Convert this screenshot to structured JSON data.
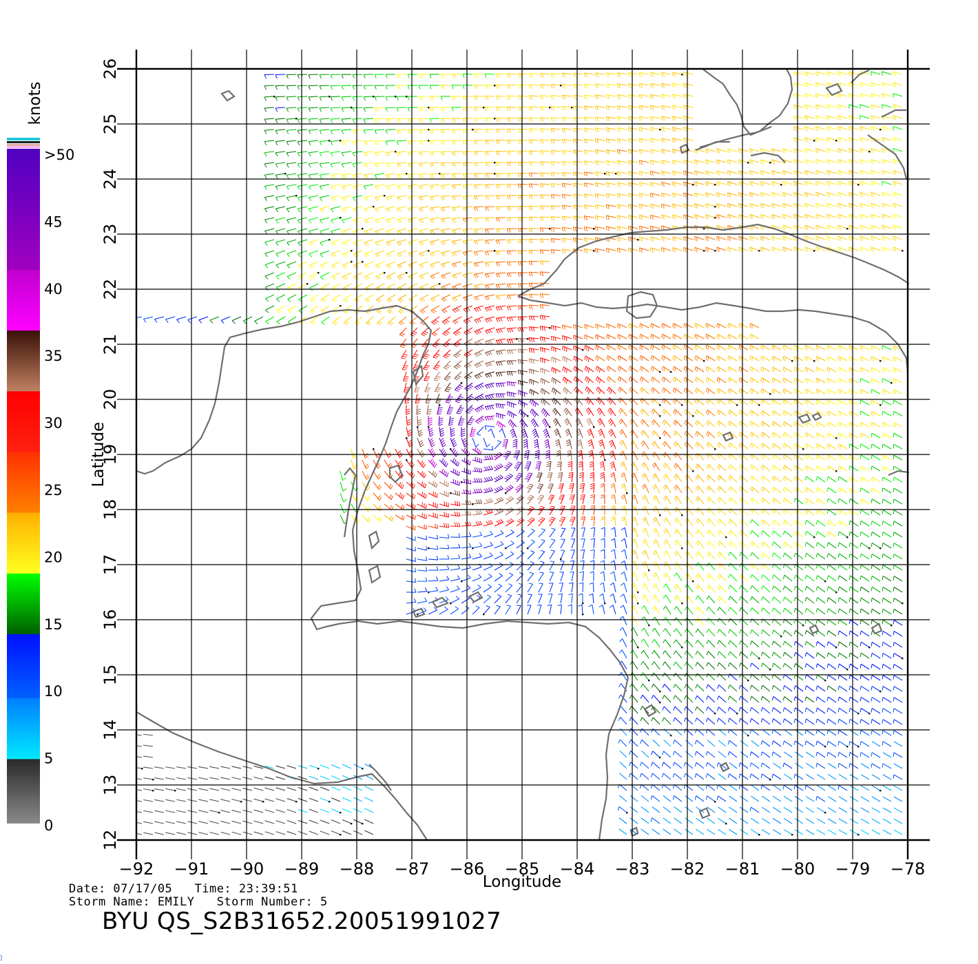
{
  "map": {
    "lon_range": [
      -92,
      -78
    ],
    "lat_range": [
      12,
      26
    ],
    "x_ticks": [
      -92,
      -91,
      -90,
      -89,
      -88,
      -87,
      -86,
      -85,
      -84,
      -83,
      -82,
      -81,
      -80,
      -79,
      -78
    ],
    "y_ticks": [
      12,
      13,
      14,
      15,
      16,
      17,
      18,
      19,
      20,
      21,
      22,
      23,
      24,
      25,
      26
    ],
    "xlabel": "Longitude",
    "ylabel": "Latitude",
    "grid": true,
    "storm_center": {
      "lon": -85.6,
      "lat": 19.3
    },
    "coastline_color": "#6e6e6e"
  },
  "legend": {
    "title": "knots",
    "placement": "left",
    "labels": [
      ">50",
      "45",
      "40",
      "35",
      "30",
      "25",
      "20",
      "15",
      "10",
      "5",
      "0"
    ],
    "bands": [
      {
        "from": 0,
        "to": 5,
        "colors": [
          "#8a8a8a",
          "#2a2a2a"
        ]
      },
      {
        "from": 5,
        "to": 10,
        "colors": [
          "#00e8ff",
          "#0080ff"
        ]
      },
      {
        "from": 10,
        "to": 15,
        "colors": [
          "#0060ff",
          "#0010ff"
        ]
      },
      {
        "from": 15,
        "to": 20,
        "colors": [
          "#006000",
          "#00ff00"
        ]
      },
      {
        "from": 20,
        "to": 25,
        "colors": [
          "#ffff20",
          "#ffb000"
        ]
      },
      {
        "from": 25,
        "to": 30,
        "colors": [
          "#ff8000",
          "#ff3000"
        ]
      },
      {
        "from": 30,
        "to": 35,
        "colors": [
          "#ff2010",
          "#ff0000"
        ]
      },
      {
        "from": 35,
        "to": 40,
        "colors": [
          "#c08060",
          "#3a1008"
        ]
      },
      {
        "from": 40,
        "to": 45,
        "colors": [
          "#ff00ff",
          "#c000d0"
        ]
      },
      {
        "from": 45,
        "to": 50,
        "colors": [
          "#a000c0",
          "#5000c0"
        ]
      }
    ]
  },
  "info": {
    "line1": "Date: 07/17/05   Time: 23:39:51",
    "line2": "Storm Name: EMILY   Storm Number: 5",
    "product": "BYU QS_S2B31652.20051991027"
  }
}
